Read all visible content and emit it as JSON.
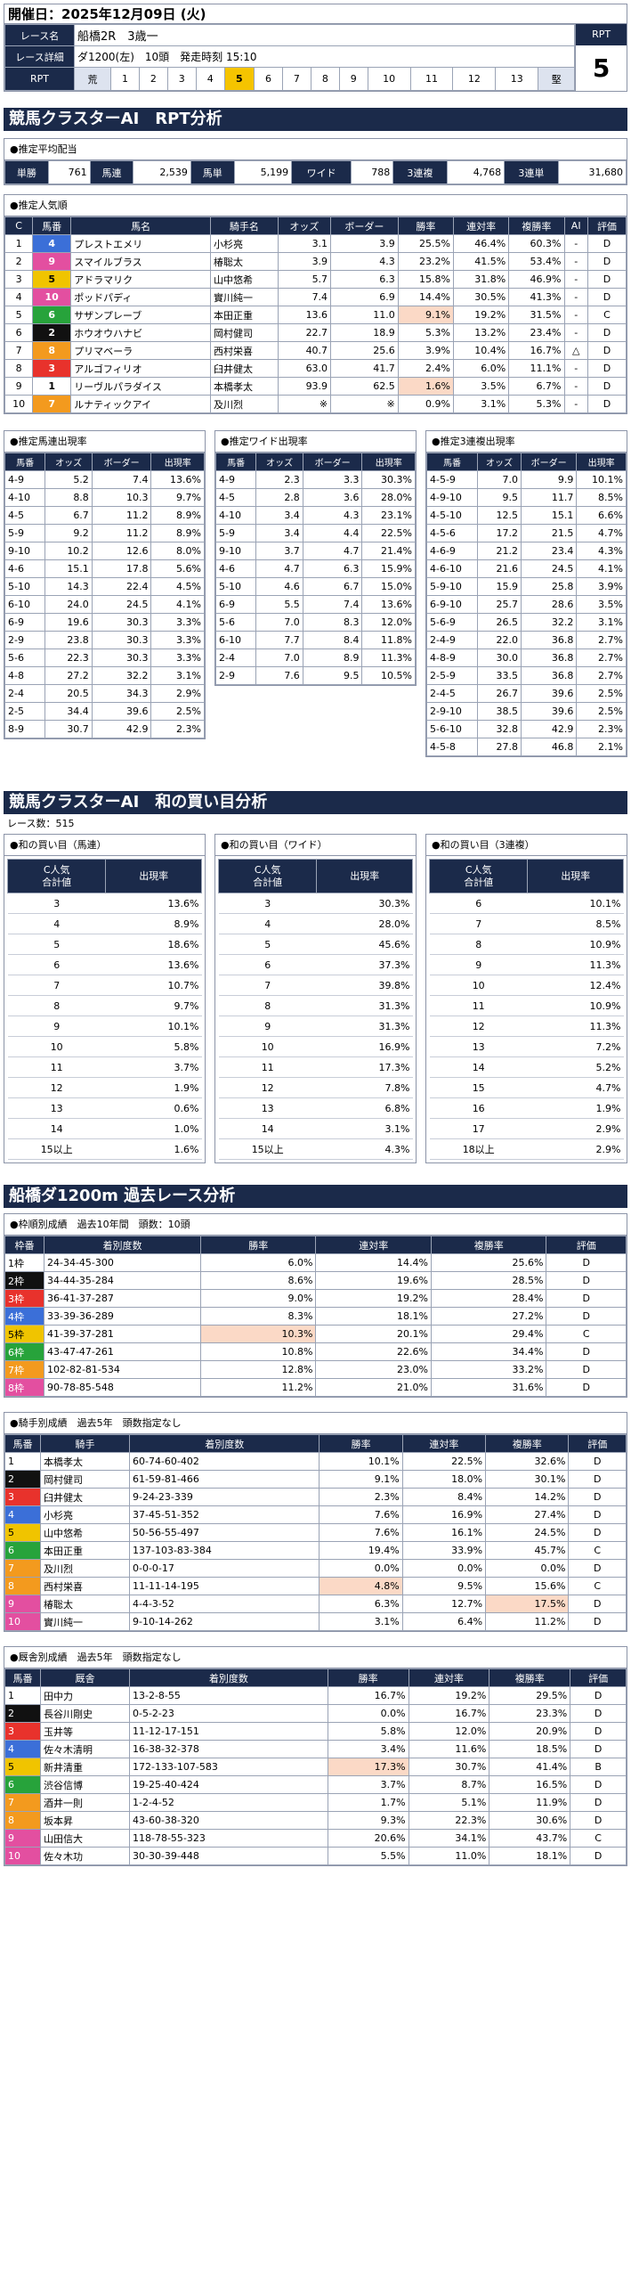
{
  "header": {
    "date_label": "開催日：",
    "date": "2025年12月09日 (火)",
    "race_name_label": "レース名",
    "race_name": "船橋2R　3歳一",
    "race_detail_label": "レース詳細",
    "race_detail": "ダ1200(左)　10頭　発走時刻 15:10",
    "rpt_label": "RPT",
    "rpt_scale": [
      "荒",
      "1",
      "2",
      "3",
      "4",
      "5",
      "6",
      "7",
      "8",
      "9",
      "10",
      "11",
      "12",
      "13",
      "堅"
    ],
    "rpt_selected": "5",
    "rpt_box_label": "RPT",
    "rpt_value": "5"
  },
  "cluster": {
    "title": "競馬クラスターAI　RPT分析",
    "payout_title": "●推定平均配当",
    "payouts": [
      {
        "k": "単勝",
        "v": "761"
      },
      {
        "k": "馬連",
        "v": "2,539"
      },
      {
        "k": "馬単",
        "v": "5,199"
      },
      {
        "k": "ワイド",
        "v": "788"
      },
      {
        "k": "3連複",
        "v": "4,768"
      },
      {
        "k": "3連単",
        "v": "31,680"
      }
    ],
    "pop_title": "●推定人気順",
    "pop_headers": [
      "C",
      "馬番",
      "馬名",
      "騎手名",
      "オッズ",
      "ボーダー",
      "勝率",
      "連対率",
      "複勝率",
      "AI",
      "評価"
    ],
    "pop_rows": [
      [
        "1",
        "4",
        "プレストエメリ",
        "小杉亮",
        "3.1",
        "3.9",
        "25.5%",
        "46.4%",
        "60.3%",
        "-",
        "D"
      ],
      [
        "2",
        "9",
        "スマイルブラス",
        "椿聡太",
        "3.9",
        "4.3",
        "23.2%",
        "41.5%",
        "53.4%",
        "-",
        "D"
      ],
      [
        "3",
        "5",
        "アドラマリク",
        "山中悠希",
        "5.7",
        "6.3",
        "15.8%",
        "31.8%",
        "46.9%",
        "-",
        "D"
      ],
      [
        "4",
        "10",
        "ポッドパディ",
        "實川純一",
        "7.4",
        "6.9",
        "14.4%",
        "30.5%",
        "41.3%",
        "-",
        "D"
      ],
      [
        "5",
        "6",
        "サザンプレーブ",
        "本田正重",
        "13.6",
        "11.0",
        "9.1%",
        "19.2%",
        "31.5%",
        "-",
        "C"
      ],
      [
        "6",
        "2",
        "ホウオウハナビ",
        "岡村健司",
        "22.7",
        "18.9",
        "5.3%",
        "13.2%",
        "23.4%",
        "-",
        "D"
      ],
      [
        "7",
        "8",
        "プリマベーラ",
        "西村栄喜",
        "40.7",
        "25.6",
        "3.9%",
        "10.4%",
        "16.7%",
        "△",
        "D"
      ],
      [
        "8",
        "3",
        "アルゴフィリオ",
        "臼井健太",
        "63.0",
        "41.7",
        "2.4%",
        "6.0%",
        "11.1%",
        "-",
        "D"
      ],
      [
        "9",
        "1",
        "リーヴルパラダイス",
        "本橋孝太",
        "93.9",
        "62.5",
        "1.6%",
        "3.5%",
        "6.7%",
        "-",
        "D"
      ],
      [
        "10",
        "7",
        "ルナティックアイ",
        "及川烈",
        "※",
        "※",
        "0.9%",
        "3.1%",
        "5.3%",
        "-",
        "D"
      ]
    ],
    "umaren": {
      "title": "●推定馬連出現率",
      "headers": [
        "馬番",
        "オッズ",
        "ボーダー",
        "出現率"
      ],
      "rows": [
        [
          "4-9",
          "5.2",
          "7.4",
          "13.6%"
        ],
        [
          "4-10",
          "8.8",
          "10.3",
          "9.7%"
        ],
        [
          "4-5",
          "6.7",
          "11.2",
          "8.9%"
        ],
        [
          "5-9",
          "9.2",
          "11.2",
          "8.9%"
        ],
        [
          "9-10",
          "10.2",
          "12.6",
          "8.0%"
        ],
        [
          "4-6",
          "15.1",
          "17.8",
          "5.6%"
        ],
        [
          "5-10",
          "14.3",
          "22.4",
          "4.5%"
        ],
        [
          "6-10",
          "24.0",
          "24.5",
          "4.1%"
        ],
        [
          "6-9",
          "19.6",
          "30.3",
          "3.3%"
        ],
        [
          "2-9",
          "23.8",
          "30.3",
          "3.3%"
        ],
        [
          "5-6",
          "22.3",
          "30.3",
          "3.3%"
        ],
        [
          "4-8",
          "27.2",
          "32.2",
          "3.1%"
        ],
        [
          "2-4",
          "20.5",
          "34.3",
          "2.9%"
        ],
        [
          "2-5",
          "34.4",
          "39.6",
          "2.5%"
        ],
        [
          "8-9",
          "30.7",
          "42.9",
          "2.3%"
        ]
      ]
    },
    "wide": {
      "title": "●推定ワイド出現率",
      "headers": [
        "馬番",
        "オッズ",
        "ボーダー",
        "出現率"
      ],
      "rows": [
        [
          "4-9",
          "2.3",
          "3.3",
          "30.3%"
        ],
        [
          "4-5",
          "2.8",
          "3.6",
          "28.0%"
        ],
        [
          "4-10",
          "3.4",
          "4.3",
          "23.1%"
        ],
        [
          "5-9",
          "3.4",
          "4.4",
          "22.5%"
        ],
        [
          "9-10",
          "3.7",
          "4.7",
          "21.4%"
        ],
        [
          "4-6",
          "4.7",
          "6.3",
          "15.9%"
        ],
        [
          "5-10",
          "4.6",
          "6.7",
          "15.0%"
        ],
        [
          "6-9",
          "5.5",
          "7.4",
          "13.6%"
        ],
        [
          "5-6",
          "7.0",
          "8.3",
          "12.0%"
        ],
        [
          "6-10",
          "7.7",
          "8.4",
          "11.8%"
        ],
        [
          "2-4",
          "7.0",
          "8.9",
          "11.3%"
        ],
        [
          "2-9",
          "7.6",
          "9.5",
          "10.5%"
        ]
      ]
    },
    "trio": {
      "title": "●推定3連複出現率",
      "headers": [
        "馬番",
        "オッズ",
        "ボーダー",
        "出現率"
      ],
      "rows": [
        [
          "4-5-9",
          "7.0",
          "9.9",
          "10.1%"
        ],
        [
          "4-9-10",
          "9.5",
          "11.7",
          "8.5%"
        ],
        [
          "4-5-10",
          "12.5",
          "15.1",
          "6.6%"
        ],
        [
          "4-5-6",
          "17.2",
          "21.5",
          "4.7%"
        ],
        [
          "4-6-9",
          "21.2",
          "23.4",
          "4.3%"
        ],
        [
          "4-6-10",
          "21.6",
          "24.5",
          "4.1%"
        ],
        [
          "5-9-10",
          "15.9",
          "25.8",
          "3.9%"
        ],
        [
          "6-9-10",
          "25.7",
          "28.6",
          "3.5%"
        ],
        [
          "5-6-9",
          "26.5",
          "32.2",
          "3.1%"
        ],
        [
          "2-4-9",
          "22.0",
          "36.8",
          "2.7%"
        ],
        [
          "4-8-9",
          "30.0",
          "36.8",
          "2.7%"
        ],
        [
          "2-5-9",
          "33.5",
          "36.8",
          "2.7%"
        ],
        [
          "2-4-5",
          "26.7",
          "39.6",
          "2.5%"
        ],
        [
          "2-9-10",
          "38.5",
          "39.6",
          "2.5%"
        ],
        [
          "5-6-10",
          "32.8",
          "42.9",
          "2.3%"
        ],
        [
          "4-5-8",
          "27.8",
          "46.8",
          "2.1%"
        ]
      ]
    }
  },
  "wa": {
    "title": "競馬クラスターAI　和の買い目分析",
    "race_count": "レース数：515",
    "headers": [
      "C人気\n合計値",
      "出現率"
    ],
    "umaren": {
      "title": "●和の買い目（馬連）",
      "rows": [
        [
          "3",
          "13.6%"
        ],
        [
          "4",
          "8.9%"
        ],
        [
          "5",
          "18.6%"
        ],
        [
          "6",
          "13.6%"
        ],
        [
          "7",
          "10.7%"
        ],
        [
          "8",
          "9.7%"
        ],
        [
          "9",
          "10.1%"
        ],
        [
          "10",
          "5.8%"
        ],
        [
          "11",
          "3.7%"
        ],
        [
          "12",
          "1.9%"
        ],
        [
          "13",
          "0.6%"
        ],
        [
          "14",
          "1.0%"
        ],
        [
          "15以上",
          "1.6%"
        ]
      ]
    },
    "wide": {
      "title": "●和の買い目（ワイド）",
      "rows": [
        [
          "3",
          "30.3%"
        ],
        [
          "4",
          "28.0%"
        ],
        [
          "5",
          "45.6%"
        ],
        [
          "6",
          "37.3%"
        ],
        [
          "7",
          "39.8%"
        ],
        [
          "8",
          "31.3%"
        ],
        [
          "9",
          "31.3%"
        ],
        [
          "10",
          "16.9%"
        ],
        [
          "11",
          "17.3%"
        ],
        [
          "12",
          "7.8%"
        ],
        [
          "13",
          "6.8%"
        ],
        [
          "14",
          "3.1%"
        ],
        [
          "15以上",
          "4.3%"
        ]
      ]
    },
    "trio": {
      "title": "●和の買い目（3連複）",
      "rows": [
        [
          "6",
          "10.1%"
        ],
        [
          "7",
          "8.5%"
        ],
        [
          "8",
          "10.9%"
        ],
        [
          "9",
          "11.3%"
        ],
        [
          "10",
          "12.4%"
        ],
        [
          "11",
          "10.9%"
        ],
        [
          "12",
          "11.3%"
        ],
        [
          "13",
          "7.2%"
        ],
        [
          "14",
          "5.2%"
        ],
        [
          "15",
          "4.7%"
        ],
        [
          "16",
          "1.9%"
        ],
        [
          "17",
          "2.9%"
        ],
        [
          "18以上",
          "2.9%"
        ]
      ]
    }
  },
  "past": {
    "title": "船橋ダ1200m 過去レース分析",
    "frame": {
      "title": "●枠順別成績　過去10年間　頭数：10頭",
      "headers": [
        "枠番",
        "着別度数",
        "勝率",
        "連対率",
        "複勝率",
        "評価"
      ],
      "rows": [
        [
          "1枠",
          "24-34-45-300",
          "6.0%",
          "14.4%",
          "25.6%",
          "D"
        ],
        [
          "2枠",
          "34-44-35-284",
          "8.6%",
          "19.6%",
          "28.5%",
          "D"
        ],
        [
          "3枠",
          "36-41-37-287",
          "9.0%",
          "19.2%",
          "28.4%",
          "D"
        ],
        [
          "4枠",
          "33-39-36-289",
          "8.3%",
          "18.1%",
          "27.2%",
          "D"
        ],
        [
          "5枠",
          "41-39-37-281",
          "10.3%",
          "20.1%",
          "29.4%",
          "C"
        ],
        [
          "6枠",
          "43-47-47-261",
          "10.8%",
          "22.6%",
          "34.4%",
          "D"
        ],
        [
          "7枠",
          "102-82-81-534",
          "12.8%",
          "23.0%",
          "33.2%",
          "D"
        ],
        [
          "8枠",
          "90-78-85-548",
          "11.2%",
          "21.0%",
          "31.6%",
          "D"
        ]
      ]
    },
    "jockey": {
      "title": "●騎手別成績　過去5年　頭数指定なし",
      "headers": [
        "馬番",
        "騎手",
        "着別度数",
        "勝率",
        "連対率",
        "複勝率",
        "評価"
      ],
      "rows": [
        [
          "1",
          "本橋孝太",
          "60-74-60-402",
          "10.1%",
          "22.5%",
          "32.6%",
          "D"
        ],
        [
          "2",
          "岡村健司",
          "61-59-81-466",
          "9.1%",
          "18.0%",
          "30.1%",
          "D"
        ],
        [
          "3",
          "臼井健太",
          "9-24-23-339",
          "2.3%",
          "8.4%",
          "14.2%",
          "D"
        ],
        [
          "4",
          "小杉亮",
          "37-45-51-352",
          "7.6%",
          "16.9%",
          "27.4%",
          "D"
        ],
        [
          "5",
          "山中悠希",
          "50-56-55-497",
          "7.6%",
          "16.1%",
          "24.5%",
          "D"
        ],
        [
          "6",
          "本田正重",
          "137-103-83-384",
          "19.4%",
          "33.9%",
          "45.7%",
          "C"
        ],
        [
          "7",
          "及川烈",
          "0-0-0-17",
          "0.0%",
          "0.0%",
          "0.0%",
          "D"
        ],
        [
          "8",
          "西村栄喜",
          "11-11-14-195",
          "4.8%",
          "9.5%",
          "15.6%",
          "C"
        ],
        [
          "9",
          "椿聡太",
          "4-4-3-52",
          "6.3%",
          "12.7%",
          "17.5%",
          "D"
        ],
        [
          "10",
          "實川純一",
          "9-10-14-262",
          "3.1%",
          "6.4%",
          "11.2%",
          "D"
        ]
      ]
    },
    "stable": {
      "title": "●厩舎別成績　過去5年　頭数指定なし",
      "headers": [
        "馬番",
        "厩舎",
        "着別度数",
        "勝率",
        "連対率",
        "複勝率",
        "評価"
      ],
      "rows": [
        [
          "1",
          "田中力",
          "13-2-8-55",
          "16.7%",
          "19.2%",
          "29.5%",
          "D"
        ],
        [
          "2",
          "長谷川剛史",
          "0-5-2-23",
          "0.0%",
          "16.7%",
          "23.3%",
          "D"
        ],
        [
          "3",
          "玉井等",
          "11-12-17-151",
          "5.8%",
          "12.0%",
          "20.9%",
          "D"
        ],
        [
          "4",
          "佐々木清明",
          "16-38-32-378",
          "3.4%",
          "11.6%",
          "18.5%",
          "D"
        ],
        [
          "5",
          "新井清重",
          "172-133-107-583",
          "17.3%",
          "30.7%",
          "41.4%",
          "B"
        ],
        [
          "6",
          "渋谷信博",
          "19-25-40-424",
          "3.7%",
          "8.7%",
          "16.5%",
          "D"
        ],
        [
          "7",
          "酒井一則",
          "1-2-4-52",
          "1.7%",
          "5.1%",
          "11.9%",
          "D"
        ],
        [
          "8",
          "坂本昇",
          "43-60-38-320",
          "9.3%",
          "22.3%",
          "30.6%",
          "D"
        ],
        [
          "9",
          "山田信大",
          "118-78-55-323",
          "20.6%",
          "34.1%",
          "43.7%",
          "C"
        ],
        [
          "10",
          "佐々木功",
          "30-30-39-448",
          "5.5%",
          "11.0%",
          "18.1%",
          "D"
        ]
      ]
    }
  },
  "colors": {
    "navy": "#1b2a4a",
    "highlight": "#fbd9c6",
    "frame": [
      "#ffffff",
      "#111111",
      "#e8322c",
      "#3b6fd8",
      "#f0c400",
      "#27a33b",
      "#f39a1e",
      "#e34fa0"
    ]
  }
}
